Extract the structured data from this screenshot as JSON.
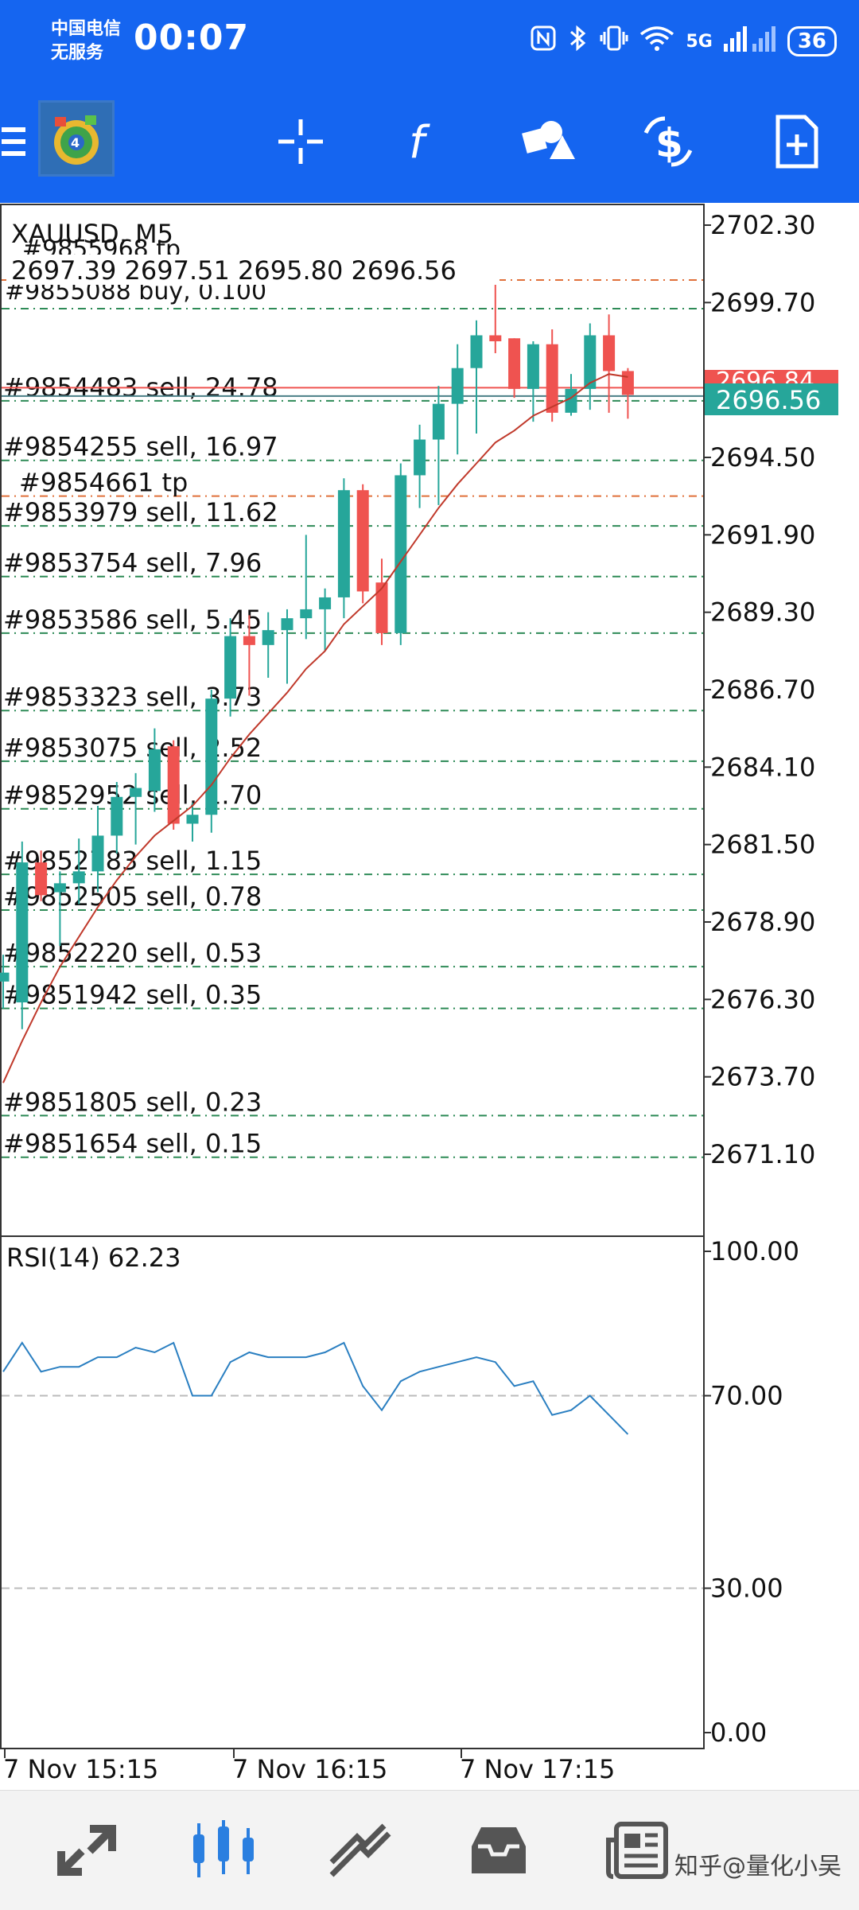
{
  "status": {
    "carrier_line1": "中国电信",
    "carrier_line2": "无服务",
    "time": "00:07",
    "network": "5G",
    "battery": "36"
  },
  "toolbar": {
    "items": [
      "menu-icon",
      "app-logo",
      "crosshair-icon",
      "indicators-icon",
      "objects-icon",
      "trade-icon",
      "new-order-icon"
    ]
  },
  "chart": {
    "symbol_label": "XAUUSD, M5",
    "ohlc_line": "2697.39 2697.51 2695.80 2696.56",
    "overlap_top_label": "#9855968 tp",
    "overlap_buy_label": "#9855088 buy, 0.100",
    "current_price_label": "2696.56",
    "hidden_price_label": "2696.84",
    "price_ticks": [
      "2702.30",
      "2699.70",
      "2694.50",
      "2691.90",
      "2689.30",
      "2686.70",
      "2684.10",
      "2681.50",
      "2678.90",
      "2676.30",
      "2673.70",
      "2671.10"
    ],
    "order_labels": [
      {
        "text": "#9854483 sell, 24.78",
        "price": 2696.4
      },
      {
        "text": "#9854255 sell, 16.97",
        "price": 2694.4
      },
      {
        "text": "#9854661 tp",
        "price": 2693.2
      },
      {
        "text": "#9853979 sell, 11.62",
        "price": 2692.2
      },
      {
        "text": "#9853754 sell, 7.96",
        "price": 2690.5
      },
      {
        "text": "#9853586 sell, 5.45",
        "price": 2688.6
      },
      {
        "text": "#9853323 sell, 3.73",
        "price": 2686.0
      },
      {
        "text": "#9853075 sell, 2.52",
        "price": 2684.3
      },
      {
        "text": "#9852952 sell, 1.70",
        "price": 2682.7
      },
      {
        "text": "#9852783 sell, 1.15",
        "price": 2680.5
      },
      {
        "text": "#9852505 sell, 0.78",
        "price": 2679.3
      },
      {
        "text": "#9852220 sell, 0.53",
        "price": 2677.4
      },
      {
        "text": "#9851942 sell, 0.35",
        "price": 2676.0
      },
      {
        "text": "#9851805 sell, 0.23",
        "price": 2672.4
      },
      {
        "text": "#9851654 sell, 0.15",
        "price": 2671.0
      }
    ],
    "time_labels": [
      "7 Nov 15:15",
      "7 Nov 16:15",
      "7 Nov 17:15"
    ],
    "colors": {
      "bull": "#26a69a",
      "bear": "#ef5350",
      "ma": "#c0392b",
      "rsi": "#2a7fc1",
      "grid_line": "#2e8b57",
      "tp_line": "#e0703a"
    }
  },
  "chart_data": {
    "type": "candlestick",
    "symbol": "XAUUSD",
    "timeframe": "M5",
    "ylim": [
      2668.5,
      2703.4
    ],
    "candles": [
      {
        "o": 2676.9,
        "h": 2677.8,
        "l": 2676.0,
        "c": 2677.2
      },
      {
        "o": 2676.2,
        "h": 2681.6,
        "l": 2675.3,
        "c": 2680.9
      },
      {
        "o": 2680.9,
        "h": 2681.3,
        "l": 2679.6,
        "c": 2679.8
      },
      {
        "o": 2679.9,
        "h": 2680.6,
        "l": 2678.1,
        "c": 2680.2
      },
      {
        "o": 2680.2,
        "h": 2681.7,
        "l": 2679.5,
        "c": 2680.6
      },
      {
        "o": 2680.6,
        "h": 2682.8,
        "l": 2679.9,
        "c": 2681.8
      },
      {
        "o": 2681.8,
        "h": 2683.6,
        "l": 2681.2,
        "c": 2683.1
      },
      {
        "o": 2683.1,
        "h": 2683.9,
        "l": 2681.5,
        "c": 2683.4
      },
      {
        "o": 2683.3,
        "h": 2685.4,
        "l": 2682.6,
        "c": 2684.7
      },
      {
        "o": 2684.8,
        "h": 2685.0,
        "l": 2682.0,
        "c": 2682.2
      },
      {
        "o": 2682.2,
        "h": 2682.9,
        "l": 2681.6,
        "c": 2682.5
      },
      {
        "o": 2682.5,
        "h": 2686.7,
        "l": 2681.9,
        "c": 2686.4
      },
      {
        "o": 2686.4,
        "h": 2689.1,
        "l": 2685.8,
        "c": 2688.5
      },
      {
        "o": 2688.5,
        "h": 2689.2,
        "l": 2686.5,
        "c": 2688.2
      },
      {
        "o": 2688.2,
        "h": 2689.3,
        "l": 2687.1,
        "c": 2688.7
      },
      {
        "o": 2688.7,
        "h": 2689.4,
        "l": 2686.9,
        "c": 2689.1
      },
      {
        "o": 2689.1,
        "h": 2691.9,
        "l": 2688.4,
        "c": 2689.4
      },
      {
        "o": 2689.4,
        "h": 2690.1,
        "l": 2688.0,
        "c": 2689.8
      },
      {
        "o": 2689.8,
        "h": 2693.8,
        "l": 2689.1,
        "c": 2693.4
      },
      {
        "o": 2693.4,
        "h": 2693.6,
        "l": 2689.6,
        "c": 2690.0
      },
      {
        "o": 2690.3,
        "h": 2691.1,
        "l": 2688.2,
        "c": 2688.6
      },
      {
        "o": 2688.6,
        "h": 2694.3,
        "l": 2688.2,
        "c": 2693.9
      },
      {
        "o": 2693.9,
        "h": 2695.6,
        "l": 2692.8,
        "c": 2695.1
      },
      {
        "o": 2695.1,
        "h": 2696.9,
        "l": 2692.9,
        "c": 2696.3
      },
      {
        "o": 2696.3,
        "h": 2698.3,
        "l": 2694.6,
        "c": 2697.5
      },
      {
        "o": 2697.5,
        "h": 2699.1,
        "l": 2695.3,
        "c": 2698.6
      },
      {
        "o": 2698.6,
        "h": 2700.4,
        "l": 2698.0,
        "c": 2698.4
      },
      {
        "o": 2698.5,
        "h": 2698.5,
        "l": 2696.5,
        "c": 2696.8
      },
      {
        "o": 2696.8,
        "h": 2698.4,
        "l": 2695.7,
        "c": 2698.3
      },
      {
        "o": 2698.3,
        "h": 2698.8,
        "l": 2695.7,
        "c": 2696.0
      },
      {
        "o": 2696.0,
        "h": 2697.3,
        "l": 2695.9,
        "c": 2696.8
      },
      {
        "o": 2696.8,
        "h": 2699.0,
        "l": 2696.1,
        "c": 2698.6
      },
      {
        "o": 2698.6,
        "h": 2699.3,
        "l": 2696.0,
        "c": 2697.4
      },
      {
        "o": 2697.4,
        "h": 2697.5,
        "l": 2695.8,
        "c": 2696.6
      }
    ],
    "ma": [
      2673.5,
      2674.9,
      2676.2,
      2677.4,
      2678.4,
      2679.4,
      2680.3,
      2681.1,
      2681.8,
      2682.3,
      2682.8,
      2683.5,
      2684.4,
      2685.2,
      2685.9,
      2686.6,
      2687.4,
      2688.0,
      2688.9,
      2689.5,
      2690.1,
      2691.0,
      2691.9,
      2692.8,
      2693.6,
      2694.3,
      2695.0,
      2695.4,
      2695.9,
      2696.2,
      2696.5,
      2697.0,
      2697.3,
      2697.2
    ],
    "rsi": {
      "period": 14,
      "label": "RSI(14) 62.23",
      "levels": [
        70,
        30
      ],
      "ylim": [
        0,
        100
      ],
      "values": [
        75,
        81,
        75,
        76,
        76,
        78,
        78,
        80,
        79,
        81,
        70,
        70,
        77,
        79,
        78,
        78,
        78,
        79,
        81,
        72,
        67,
        73,
        75,
        76,
        77,
        78,
        77,
        72,
        73,
        66,
        67,
        70,
        66,
        62
      ]
    },
    "rsi_ticks": [
      "100.00",
      "70.00",
      "30.00",
      "0.00"
    ]
  },
  "bottom_nav": {
    "items": [
      "quotes-icon",
      "chart-icon",
      "trade-icon",
      "history-icon",
      "news-icon"
    ],
    "watermark": "知乎@量化小吴"
  }
}
